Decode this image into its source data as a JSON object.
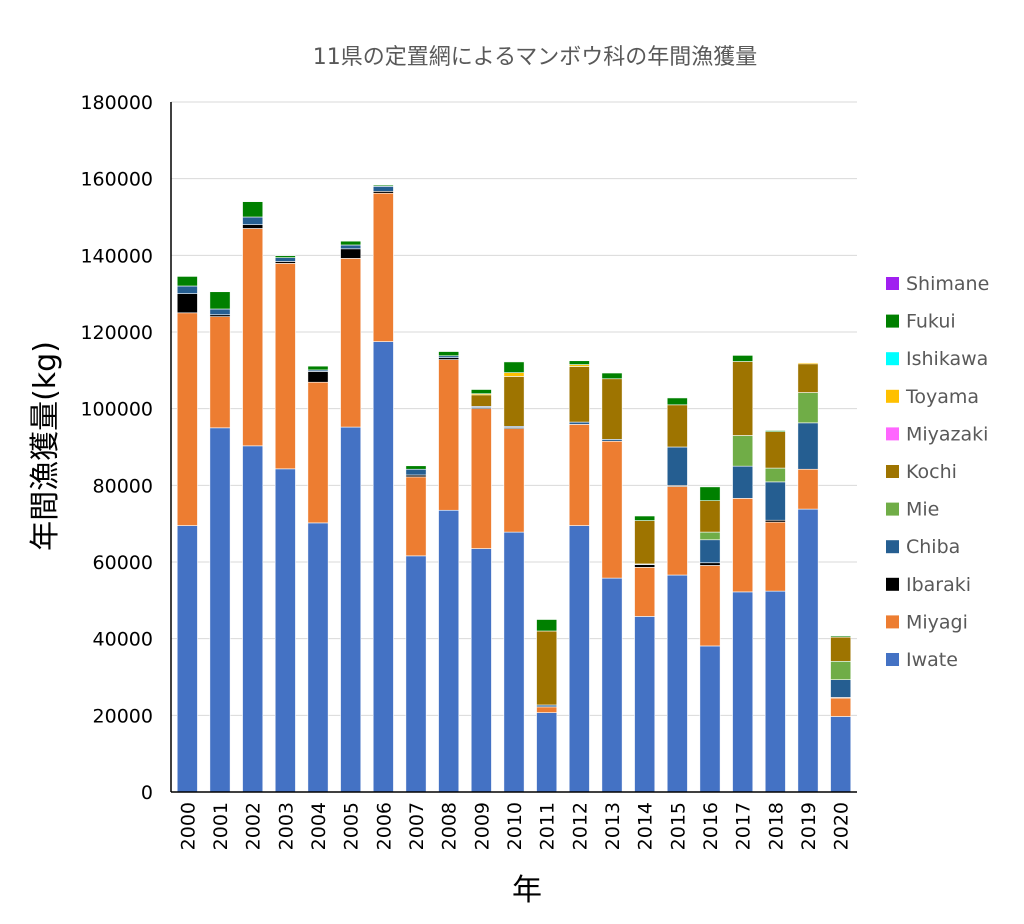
{
  "chart_data": {
    "type": "bar",
    "stacked": true,
    "title": "11県の定置網によるマンボウ科の年間漁獲量",
    "xlabel": "年",
    "ylabel": "年間漁獲量(kg)",
    "ylim": [
      0,
      180000
    ],
    "yticks": [
      0,
      20000,
      40000,
      60000,
      80000,
      100000,
      120000,
      140000,
      160000,
      180000
    ],
    "grid": true,
    "legend_position": "right",
    "categories": [
      "2000",
      "2001",
      "2002",
      "2003",
      "2004",
      "2005",
      "2006",
      "2007",
      "2008",
      "2009",
      "2010",
      "2011",
      "2012",
      "2013",
      "2014",
      "2015",
      "2016",
      "2017",
      "2018",
      "2019",
      "2020"
    ],
    "series": [
      {
        "name": "Iwate",
        "color": "#4472c4",
        "values": [
          69500,
          95000,
          90300,
          84300,
          70200,
          95200,
          117500,
          61600,
          73500,
          63500,
          67800,
          20700,
          69500,
          55800,
          45800,
          56600,
          38100,
          52200,
          52400,
          73800,
          19700
        ]
      },
      {
        "name": "Miyagi",
        "color": "#ed7d31",
        "values": [
          55500,
          29000,
          56700,
          53600,
          36700,
          44000,
          38700,
          20600,
          39300,
          36500,
          27000,
          1500,
          26400,
          35700,
          12800,
          23100,
          21000,
          24400,
          18000,
          10400,
          4800
        ]
      },
      {
        "name": "Ibaraki",
        "color": "#000000",
        "values": [
          5000,
          500,
          1000,
          500,
          2800,
          2500,
          500,
          500,
          500,
          300,
          300,
          0,
          0,
          0,
          700,
          300,
          700,
          0,
          500,
          0,
          200
        ]
      },
      {
        "name": "Chiba",
        "color": "#255e91",
        "values": [
          2000,
          1500,
          2000,
          1000,
          400,
          1000,
          1300,
          1500,
          500,
          300,
          300,
          500,
          600,
          500,
          200,
          10000,
          6000,
          8400,
          10000,
          12100,
          4600
        ]
      },
      {
        "name": "Mie",
        "color": "#70ad47",
        "values": [
          0,
          0,
          0,
          0,
          0,
          0,
          0,
          0,
          0,
          0,
          0,
          0,
          0,
          0,
          0,
          0,
          2000,
          8000,
          3600,
          7900,
          4800
        ]
      },
      {
        "name": "Kochi",
        "color": "#9e7400",
        "values": [
          0,
          0,
          0,
          0,
          0,
          0,
          0,
          0,
          0,
          3000,
          13000,
          19300,
          14500,
          15800,
          11300,
          11000,
          8200,
          19300,
          9500,
          7500,
          6300
        ]
      },
      {
        "name": "Miyazaki",
        "color": "#ff66ff",
        "values": [
          0,
          0,
          0,
          0,
          0,
          0,
          0,
          0,
          0,
          0,
          0,
          0,
          0,
          0,
          0,
          0,
          0,
          0,
          0,
          0,
          0
        ]
      },
      {
        "name": "Toyama",
        "color": "#ffc000",
        "values": [
          0,
          0,
          0,
          0,
          0,
          0,
          0,
          0,
          0,
          300,
          1000,
          0,
          500,
          0,
          0,
          0,
          0,
          0,
          0,
          300,
          0
        ]
      },
      {
        "name": "Ishikawa",
        "color": "#00ffff",
        "values": [
          0,
          0,
          0,
          0,
          0,
          0,
          0,
          0,
          0,
          0,
          0,
          0,
          0,
          0,
          0,
          0,
          0,
          0,
          0,
          0,
          0
        ]
      },
      {
        "name": "Fukui",
        "color": "#008000",
        "values": [
          2500,
          4500,
          4000,
          500,
          1000,
          1000,
          300,
          900,
          1100,
          1100,
          2800,
          3000,
          1000,
          1500,
          1200,
          1800,
          3600,
          1600,
          300,
          0,
          300
        ]
      },
      {
        "name": "Shimane",
        "color": "#a020f0",
        "values": [
          0,
          0,
          0,
          0,
          0,
          0,
          0,
          0,
          0,
          0,
          0,
          0,
          0,
          0,
          0,
          0,
          0,
          0,
          0,
          0,
          0
        ]
      }
    ]
  }
}
